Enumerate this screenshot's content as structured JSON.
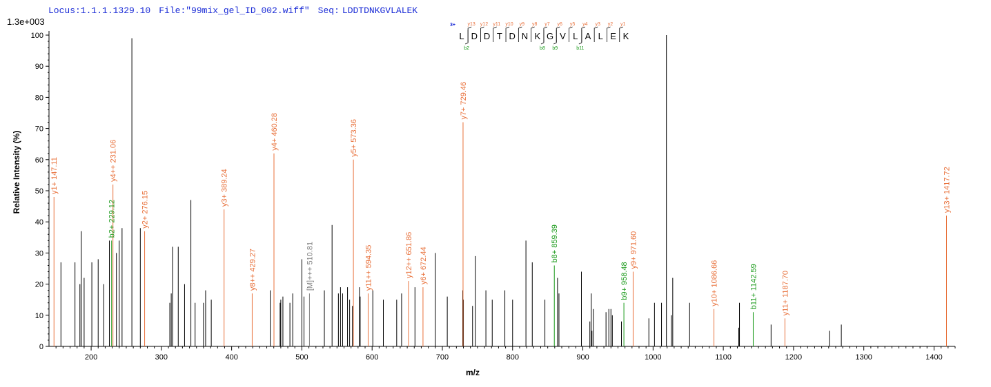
{
  "header": {
    "locus": "Locus:1.1.1.1329.10",
    "file": "File:\"99mix_gel_ID_002.wiff\"",
    "seq_label": "Seq:",
    "sequence": "LDDTDNKGVLALEK"
  },
  "scale_label": "1.3e+003",
  "colors": {
    "unlabeled": "#000000",
    "y_ion": "#e8703a",
    "b_ion": "#1a9a1a",
    "precursor": "#808080",
    "header": "#1a2bd6"
  },
  "chart_data": {
    "type": "bar",
    "xlabel": "m/z",
    "ylabel": "Relative   Intensity (%)",
    "xlim": [
      140,
      1430
    ],
    "ylim": [
      0,
      100
    ],
    "x_ticks": [
      200,
      300,
      400,
      500,
      600,
      700,
      800,
      900,
      1000,
      1100,
      1200,
      1300,
      1400
    ],
    "y_ticks": [
      0,
      10,
      20,
      30,
      40,
      50,
      60,
      70,
      80,
      90,
      100
    ],
    "peaks_unlabeled": [
      [
        157,
        27
      ],
      [
        177,
        27
      ],
      [
        184,
        20
      ],
      [
        186,
        37
      ],
      [
        190,
        22
      ],
      [
        201,
        27
      ],
      [
        210,
        28
      ],
      [
        218,
        20
      ],
      [
        226,
        34
      ],
      [
        236,
        30
      ],
      [
        240,
        34
      ],
      [
        244,
        38
      ],
      [
        258,
        99
      ],
      [
        270,
        38
      ],
      [
        312,
        14
      ],
      [
        314,
        17
      ],
      [
        316,
        32
      ],
      [
        324,
        32
      ],
      [
        333,
        20
      ],
      [
        342,
        47
      ],
      [
        348,
        14
      ],
      [
        360,
        14
      ],
      [
        363,
        18
      ],
      [
        371,
        15
      ],
      [
        455,
        18
      ],
      [
        469,
        14
      ],
      [
        470,
        15
      ],
      [
        473,
        16
      ],
      [
        483,
        14
      ],
      [
        487,
        17
      ],
      [
        500,
        28
      ],
      [
        503,
        16
      ],
      [
        532,
        18
      ],
      [
        543,
        39
      ],
      [
        552,
        17
      ],
      [
        555,
        19
      ],
      [
        558,
        17
      ],
      [
        565,
        19
      ],
      [
        568,
        15
      ],
      [
        572,
        13
      ],
      [
        582,
        19
      ],
      [
        583,
        16
      ],
      [
        601,
        18
      ],
      [
        616,
        15
      ],
      [
        635,
        15
      ],
      [
        642,
        17
      ],
      [
        661,
        19
      ],
      [
        690,
        30
      ],
      [
        707,
        16
      ],
      [
        729,
        18
      ],
      [
        730,
        15
      ],
      [
        743,
        13
      ],
      [
        747,
        29
      ],
      [
        762,
        18
      ],
      [
        771,
        15
      ],
      [
        789,
        18
      ],
      [
        800,
        15
      ],
      [
        819,
        34
      ],
      [
        828,
        27
      ],
      [
        846,
        15
      ],
      [
        864,
        22
      ],
      [
        866,
        17
      ],
      [
        898,
        24
      ],
      [
        910,
        8
      ],
      [
        912,
        17
      ],
      [
        913,
        5
      ],
      [
        915,
        12
      ],
      [
        933,
        11
      ],
      [
        937,
        12
      ],
      [
        940,
        12
      ],
      [
        942,
        10
      ],
      [
        955,
        8
      ],
      [
        994,
        9
      ],
      [
        1002,
        14
      ],
      [
        1012,
        14
      ],
      [
        1019,
        100
      ],
      [
        1026,
        10
      ],
      [
        1028,
        22
      ],
      [
        1052,
        14
      ],
      [
        1122,
        6
      ],
      [
        1123,
        14
      ],
      [
        1168,
        7
      ],
      [
        1251,
        5
      ],
      [
        1268,
        7
      ]
    ],
    "peaks_labeled": [
      {
        "x": 147.11,
        "y": 48,
        "label": "y1+ 147.11",
        "ion": "y"
      },
      {
        "x": 229.12,
        "y": 34,
        "label": "b2+ 229.12",
        "ion": "b"
      },
      {
        "x": 231.06,
        "y": 52,
        "label": "y4++ 231.06",
        "ion": "y"
      },
      {
        "x": 276.15,
        "y": 37,
        "label": "y2+ 276.15",
        "ion": "y"
      },
      {
        "x": 389.24,
        "y": 44,
        "label": "y3+ 389.24",
        "ion": "y"
      },
      {
        "x": 429.27,
        "y": 17,
        "label": "y8++ 429.27",
        "ion": "y"
      },
      {
        "x": 460.28,
        "y": 62,
        "label": "y4+ 460.28",
        "ion": "y"
      },
      {
        "x": 510.81,
        "y": 17,
        "label": "[M]+++ 510.81",
        "ion": "precursor"
      },
      {
        "x": 573.36,
        "y": 60,
        "label": "y5+ 573.36",
        "ion": "y"
      },
      {
        "x": 594.35,
        "y": 17,
        "label": "y11++ 594.35",
        "ion": "y"
      },
      {
        "x": 651.86,
        "y": 21,
        "label": "y12++ 651.86",
        "ion": "y"
      },
      {
        "x": 672.44,
        "y": 19,
        "label": "y6+ 672.44",
        "ion": "y"
      },
      {
        "x": 729.46,
        "y": 72,
        "label": "y7+ 729.46",
        "ion": "y"
      },
      {
        "x": 859.39,
        "y": 26,
        "label": "b8+ 859.39",
        "ion": "b"
      },
      {
        "x": 958.48,
        "y": 14,
        "label": "b9+ 958.48",
        "ion": "b"
      },
      {
        "x": 971.6,
        "y": 24,
        "label": "y9+ 971.60",
        "ion": "y"
      },
      {
        "x": 1086.66,
        "y": 12,
        "label": "y10+ 1086.66",
        "ion": "y"
      },
      {
        "x": 1142.59,
        "y": 11,
        "label": "b11+ 1142.59",
        "ion": "b"
      },
      {
        "x": 1187.7,
        "y": 9,
        "label": "y11+ 1187.70",
        "ion": "y"
      },
      {
        "x": 1417.72,
        "y": 42,
        "label": "y13+ 1417.72",
        "ion": "y"
      }
    ]
  },
  "sequence_map": {
    "charge": "3+",
    "residues": [
      "L",
      "D",
      "D",
      "T",
      "D",
      "N",
      "K",
      "G",
      "V",
      "L",
      "A",
      "L",
      "E",
      "K"
    ],
    "y_tags": [
      "y13",
      "y12",
      "y11",
      "y10",
      "y9",
      "y8",
      "y7",
      "y6",
      "y5",
      "y4",
      "y3",
      "y2",
      "y1"
    ],
    "b_tags": [
      {
        "after": 1,
        "tag": "b2"
      },
      {
        "after": 7,
        "tag": "b8"
      },
      {
        "after": 8,
        "tag": "b9"
      },
      {
        "after": 10,
        "tag": "b11"
      }
    ]
  }
}
